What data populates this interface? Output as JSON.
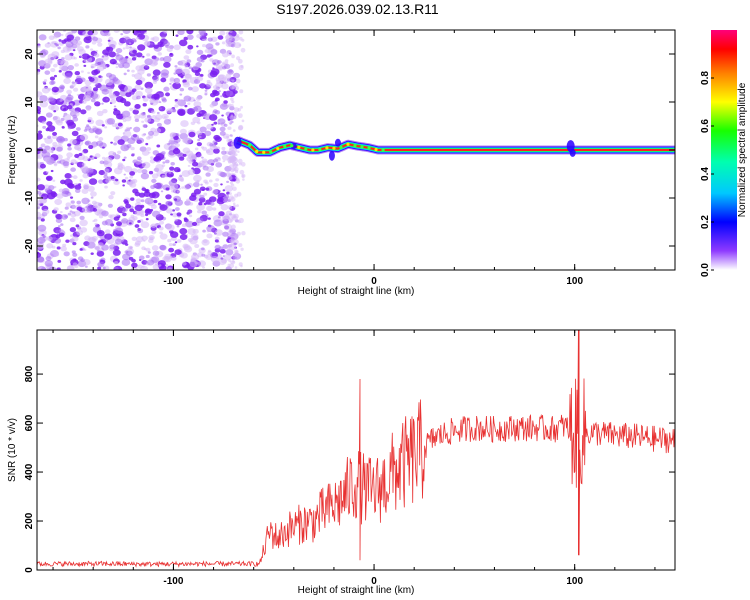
{
  "title": "S197.2026.039.02.13.R11",
  "colors": {
    "cloud_purple": "#7a1ff0",
    "cloud_light": "#d6b8f8",
    "snr_line": "#e83232",
    "axis": "#000000"
  },
  "chart_data": [
    {
      "type": "heatmap",
      "panel": "top",
      "xlabel": "Height of straight line (km)",
      "ylabel": "Frequency (Hz)",
      "xlim": [
        -168,
        150
      ],
      "ylim": [
        -25,
        25
      ],
      "x_ticks": [
        -100,
        0,
        100
      ],
      "y_ticks": [
        -20,
        -10,
        0,
        10,
        20
      ],
      "noise_region_x": [
        -168,
        -68
      ],
      "signal_track": {
        "x": [
          -68,
          -62,
          -58,
          -52,
          -47,
          -42,
          -37,
          -32,
          -28,
          -23,
          -18,
          -13,
          -8,
          -3,
          2,
          8,
          20,
          40,
          60,
          80,
          90,
          100,
          120,
          150
        ],
        "y": [
          2,
          1,
          -0.5,
          -0.5,
          0.5,
          1,
          0.5,
          0,
          0,
          0.5,
          0.3,
          1.2,
          0.8,
          0.5,
          0,
          0,
          0,
          0,
          0,
          0,
          0,
          0,
          0,
          0
        ]
      },
      "colorbar": {
        "label": "Normalized spectral amplitude",
        "range": [
          0,
          1
        ],
        "ticks": [
          0.0,
          0.2,
          0.4,
          0.6,
          0.8
        ],
        "tick_labels": [
          "0.0",
          "0.2",
          "0.4",
          "0.6",
          "0.8"
        ]
      }
    },
    {
      "type": "line",
      "panel": "bottom",
      "xlabel": "Height of straight line (km)",
      "ylabel": "SNR (10 * v/v)",
      "xlim": [
        -168,
        150
      ],
      "ylim": [
        0,
        980
      ],
      "x_ticks": [
        -100,
        0,
        100
      ],
      "y_ticks": [
        0,
        200,
        400,
        600,
        800
      ],
      "series": [
        {
          "name": "SNR",
          "x": [
            -168,
            -150,
            -130,
            -110,
            -90,
            -70,
            -57,
            -52,
            -48,
            -42,
            -36,
            -30,
            -25,
            -20,
            -15,
            -10,
            -5,
            0,
            5,
            10,
            15,
            20,
            25,
            30,
            40,
            50,
            60,
            70,
            80,
            90,
            95,
            100,
            103,
            110,
            120,
            130,
            140,
            150
          ],
          "values": [
            25,
            25,
            25,
            24,
            25,
            25,
            25,
            160,
            130,
            170,
            190,
            200,
            240,
            260,
            300,
            360,
            330,
            320,
            350,
            400,
            430,
            460,
            500,
            540,
            570,
            580,
            575,
            580,
            580,
            575,
            590,
            550,
            560,
            560,
            550,
            545,
            535,
            530
          ]
        }
      ],
      "spikes": [
        {
          "x": -7,
          "values": [
            780,
            40
          ]
        },
        {
          "x": 102,
          "values": [
            980,
            60
          ]
        }
      ]
    }
  ]
}
